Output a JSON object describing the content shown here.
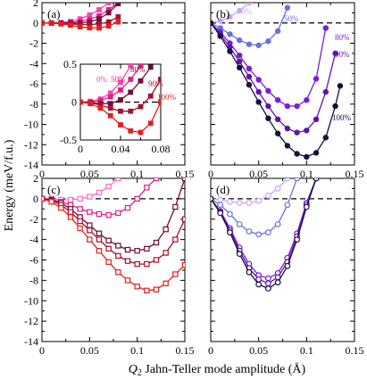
{
  "figure": {
    "ylabel": "Energy (meV/f.u.)",
    "xlabel_italic": "Q",
    "xlabel_sub": "2",
    "xlabel_rest": " Jahn-Teller mode amplitude (Å)"
  },
  "chart_data": [
    {
      "panel": "(a)",
      "type": "line",
      "xlim": [
        0,
        0.15
      ],
      "ylim": [
        -14,
        2
      ],
      "xticks": [
        "0",
        "0.05",
        "0.1",
        "0.15"
      ],
      "yticks": [
        "-14",
        "-12",
        "-10",
        "-8",
        "-6",
        "-4",
        "-2",
        "0",
        "2"
      ],
      "marker": "filled-square",
      "series": [
        {
          "name": "0%",
          "color": "#ff3fb4",
          "x": [
            0,
            0.01,
            0.02,
            0.03,
            0.04,
            0.05,
            0.06,
            0.07
          ],
          "y": [
            0,
            0.01,
            0.05,
            0.15,
            0.4,
            0.8,
            1.3,
            2.0
          ]
        },
        {
          "name": "50%",
          "color": "#e0208c",
          "x": [
            0,
            0.01,
            0.02,
            0.03,
            0.04,
            0.05,
            0.06,
            0.07,
            0.08
          ],
          "y": [
            0,
            0,
            0.01,
            0.05,
            0.15,
            0.35,
            0.7,
            1.3,
            2.0
          ]
        },
        {
          "name": "80%",
          "color": "#6a0f38",
          "x": [
            0,
            0.01,
            0.02,
            0.03,
            0.04,
            0.05,
            0.06,
            0.07,
            0.08
          ],
          "y": [
            0,
            -0.01,
            -0.02,
            -0.03,
            -0.01,
            0.1,
            0.4,
            1.0,
            1.9
          ]
        },
        {
          "name": "90%",
          "color": "#a8102e",
          "x": [
            0,
            0.01,
            0.02,
            0.03,
            0.04,
            0.05,
            0.06,
            0.07,
            0.08
          ],
          "y": [
            0,
            -0.01,
            -0.05,
            -0.1,
            -0.15,
            -0.15,
            -0.1,
            0.1,
            0.6
          ]
        },
        {
          "name": "100%",
          "color": "#e0201e",
          "x": [
            0,
            0.01,
            0.02,
            0.03,
            0.04,
            0.05,
            0.06,
            0.07,
            0.08
          ],
          "y": [
            0,
            -0.02,
            -0.1,
            -0.22,
            -0.38,
            -0.48,
            -0.5,
            -0.3,
            0.1
          ]
        }
      ],
      "inset": {
        "xlim": [
          0,
          0.08
        ],
        "ylim": [
          -0.5,
          0.5
        ],
        "xticks": [
          "0",
          "0.04",
          "0.08"
        ],
        "yticks": [
          "-0.5",
          "0",
          "0.5"
        ],
        "series": [
          {
            "name": "0%",
            "color": "#ff3fb4",
            "x": [
              0,
              0.01,
              0.02,
              0.03,
              0.04,
              0.05
            ],
            "y": [
              0,
              0.01,
              0.04,
              0.12,
              0.26,
              0.48
            ]
          },
          {
            "name": "50%",
            "color": "#e0208c",
            "x": [
              0,
              0.01,
              0.02,
              0.03,
              0.04,
              0.05,
              0.06
            ],
            "y": [
              0,
              0,
              0.02,
              0.07,
              0.16,
              0.3,
              0.48
            ]
          },
          {
            "name": "80%",
            "color": "#6a0f38",
            "x": [
              0,
              0.01,
              0.02,
              0.03,
              0.04,
              0.05,
              0.06,
              0.07
            ],
            "y": [
              0,
              -0.01,
              -0.02,
              -0.02,
              0.03,
              0.13,
              0.28,
              0.46
            ]
          },
          {
            "name": "90%",
            "color": "#a8102e",
            "x": [
              0,
              0.01,
              0.02,
              0.03,
              0.04,
              0.05,
              0.06,
              0.07,
              0.08
            ],
            "y": [
              0,
              -0.01,
              -0.04,
              -0.08,
              -0.12,
              -0.12,
              -0.06,
              0.08,
              0.3
            ]
          },
          {
            "name": "100%",
            "color": "#e0201e",
            "x": [
              0,
              0.01,
              0.02,
              0.03,
              0.04,
              0.05,
              0.06,
              0.07,
              0.08
            ],
            "y": [
              0,
              -0.02,
              -0.08,
              -0.18,
              -0.3,
              -0.38,
              -0.4,
              -0.28,
              0.0
            ]
          }
        ]
      }
    },
    {
      "panel": "(b)",
      "type": "line",
      "xlim": [
        0,
        0.15
      ],
      "ylim": [
        -14,
        2
      ],
      "xticks": [
        "0",
        "0.05",
        "0.1",
        "0.15"
      ],
      "yticks": [
        "-14",
        "-12",
        "-10",
        "-8",
        "-6",
        "-4",
        "-2",
        "0",
        "2"
      ],
      "marker": "filled-circle",
      "series": [
        {
          "name": "0%",
          "color": "#c9a8ee",
          "x": [
            0,
            0.01,
            0.02,
            0.03,
            0.04
          ],
          "y": [
            0,
            0.2,
            0.6,
            1.2,
            2.0
          ]
        },
        {
          "name": "50%",
          "color": "#6670e0",
          "x": [
            0,
            0.01,
            0.02,
            0.03,
            0.04,
            0.05,
            0.06,
            0.07,
            0.08
          ],
          "y": [
            0,
            -0.5,
            -1.1,
            -1.7,
            -2.1,
            -2.2,
            -1.8,
            -0.8,
            1.5
          ]
        },
        {
          "name": "80%",
          "color": "#7a1ce0",
          "x": [
            0,
            0.01,
            0.02,
            0.03,
            0.04,
            0.05,
            0.06,
            0.07,
            0.08,
            0.09,
            0.1,
            0.11,
            0.12
          ],
          "y": [
            0,
            -0.9,
            -2.0,
            -3.2,
            -4.5,
            -5.6,
            -6.7,
            -7.6,
            -8.2,
            -8.2,
            -7.6,
            -5.5,
            -0.5
          ]
        },
        {
          "name": "90%",
          "color": "#6512a8",
          "x": [
            0,
            0.01,
            0.02,
            0.03,
            0.04,
            0.05,
            0.06,
            0.07,
            0.08,
            0.09,
            0.1,
            0.11,
            0.12,
            0.13
          ],
          "y": [
            0,
            -1.1,
            -2.4,
            -3.8,
            -5.3,
            -6.8,
            -8.2,
            -9.5,
            -10.4,
            -10.8,
            -10.6,
            -9.5,
            -6.8,
            -3.0
          ]
        },
        {
          "name": "100%",
          "color": "#12103e",
          "x": [
            0,
            0.01,
            0.02,
            0.03,
            0.04,
            0.05,
            0.06,
            0.07,
            0.08,
            0.09,
            0.1,
            0.11,
            0.12,
            0.13,
            0.135
          ],
          "y": [
            0,
            -1.3,
            -2.8,
            -4.4,
            -6.1,
            -7.8,
            -9.4,
            -10.9,
            -12.1,
            -12.9,
            -13.2,
            -12.8,
            -11.3,
            -8.2,
            -6.2
          ]
        }
      ]
    },
    {
      "panel": "(c)",
      "type": "line",
      "xlim": [
        0,
        0.15
      ],
      "ylim": [
        -14,
        2
      ],
      "xticks": [
        "0",
        "0.05",
        "0.1",
        "0.15"
      ],
      "yticks": [
        "-14",
        "-12",
        "-10",
        "-8",
        "-6",
        "-4",
        "-2",
        "0",
        "2"
      ],
      "marker": "open-square",
      "series": [
        {
          "name": "0%",
          "color": "#ff6fc8",
          "x": [
            0,
            0.01,
            0.02,
            0.03,
            0.04,
            0.05,
            0.06,
            0.07,
            0.08
          ],
          "y": [
            0,
            0,
            -0.1,
            -0.1,
            0,
            0.2,
            0.6,
            1.2,
            2.0
          ]
        },
        {
          "name": "50%",
          "color": "#e0208c",
          "x": [
            0,
            0.01,
            0.02,
            0.03,
            0.04,
            0.05,
            0.06,
            0.07,
            0.08,
            0.09,
            0.1,
            0.11,
            0.12
          ],
          "y": [
            0,
            -0.1,
            -0.3,
            -0.6,
            -1.0,
            -1.3,
            -1.5,
            -1.6,
            -1.4,
            -0.9,
            0,
            1.1,
            2.0
          ]
        },
        {
          "name": "80%",
          "color": "#6a0f38",
          "x": [
            0,
            0.01,
            0.02,
            0.03,
            0.04,
            0.05,
            0.06,
            0.07,
            0.08,
            0.09,
            0.1,
            0.11,
            0.12,
            0.13,
            0.14,
            0.15
          ],
          "y": [
            0,
            -0.1,
            -0.4,
            -1.0,
            -1.8,
            -2.6,
            -3.4,
            -4.1,
            -4.6,
            -5.0,
            -5.1,
            -4.9,
            -4.3,
            -3.0,
            -0.8,
            2.0
          ]
        },
        {
          "name": "90%",
          "color": "#a8102e",
          "x": [
            0,
            0.01,
            0.02,
            0.03,
            0.04,
            0.05,
            0.06,
            0.07,
            0.08,
            0.09,
            0.1,
            0.11,
            0.12,
            0.13,
            0.14,
            0.15
          ],
          "y": [
            0,
            -0.2,
            -0.6,
            -1.3,
            -2.2,
            -3.1,
            -4.0,
            -4.9,
            -5.6,
            -6.1,
            -6.4,
            -6.4,
            -6.0,
            -5.3,
            -4.0,
            -2.0
          ]
        },
        {
          "name": "100%",
          "color": "#e0201e",
          "x": [
            0,
            0.01,
            0.02,
            0.03,
            0.04,
            0.05,
            0.06,
            0.07,
            0.08,
            0.09,
            0.1,
            0.11,
            0.12,
            0.13,
            0.14,
            0.15
          ],
          "y": [
            0,
            -0.3,
            -0.9,
            -1.8,
            -2.9,
            -4.0,
            -5.1,
            -6.2,
            -7.2,
            -8.0,
            -8.6,
            -9.0,
            -8.9,
            -8.3,
            -7.4,
            -6.5
          ]
        }
      ]
    },
    {
      "panel": "(d)",
      "type": "line",
      "xlim": [
        0,
        0.15
      ],
      "ylim": [
        -14,
        2
      ],
      "xticks": [
        "0",
        "0.05",
        "0.1",
        "0.15"
      ],
      "yticks": [
        "-14",
        "-12",
        "-10",
        "-8",
        "-6",
        "-4",
        "-2",
        "0",
        "2"
      ],
      "marker": "open-circle",
      "series": [
        {
          "name": "0%",
          "color": "#c9a8ee",
          "x": [
            0,
            0.01,
            0.02,
            0.03,
            0.04,
            0.05,
            0.06,
            0.07,
            0.08
          ],
          "y": [
            0,
            -0.1,
            -0.3,
            -0.4,
            -0.4,
            -0.2,
            0.3,
            1.0,
            2.0
          ]
        },
        {
          "name": "50%",
          "color": "#6670e0",
          "x": [
            0,
            0.01,
            0.02,
            0.03,
            0.04,
            0.05,
            0.06,
            0.07,
            0.08,
            0.09
          ],
          "y": [
            0,
            -0.6,
            -1.5,
            -2.5,
            -3.2,
            -3.5,
            -3.3,
            -2.5,
            -0.6,
            2.0
          ]
        },
        {
          "name": "80%",
          "color": "#7a1ce0",
          "x": [
            0,
            0.01,
            0.02,
            0.03,
            0.04,
            0.05,
            0.06,
            0.07,
            0.08,
            0.09,
            0.1,
            0.11
          ],
          "y": [
            0,
            -1.2,
            -2.9,
            -4.8,
            -6.4,
            -7.5,
            -7.8,
            -7.3,
            -5.8,
            -3.4,
            -0.4,
            2.0
          ]
        },
        {
          "name": "90%",
          "color": "#6512a8",
          "x": [
            0,
            0.01,
            0.02,
            0.03,
            0.04,
            0.05,
            0.06,
            0.07,
            0.08,
            0.09,
            0.1,
            0.11
          ],
          "y": [
            0,
            -1.3,
            -3.1,
            -5.1,
            -6.8,
            -7.9,
            -8.3,
            -7.7,
            -6.2,
            -3.7,
            -0.6,
            2.0
          ]
        },
        {
          "name": "100%",
          "color": "#12103e",
          "x": [
            0,
            0.01,
            0.02,
            0.03,
            0.04,
            0.05,
            0.06,
            0.07,
            0.08,
            0.09,
            0.1,
            0.11
          ],
          "y": [
            0,
            -1.4,
            -3.3,
            -5.4,
            -7.2,
            -8.4,
            -8.8,
            -8.2,
            -6.6,
            -4.0,
            -0.8,
            2.0
          ]
        }
      ]
    }
  ]
}
